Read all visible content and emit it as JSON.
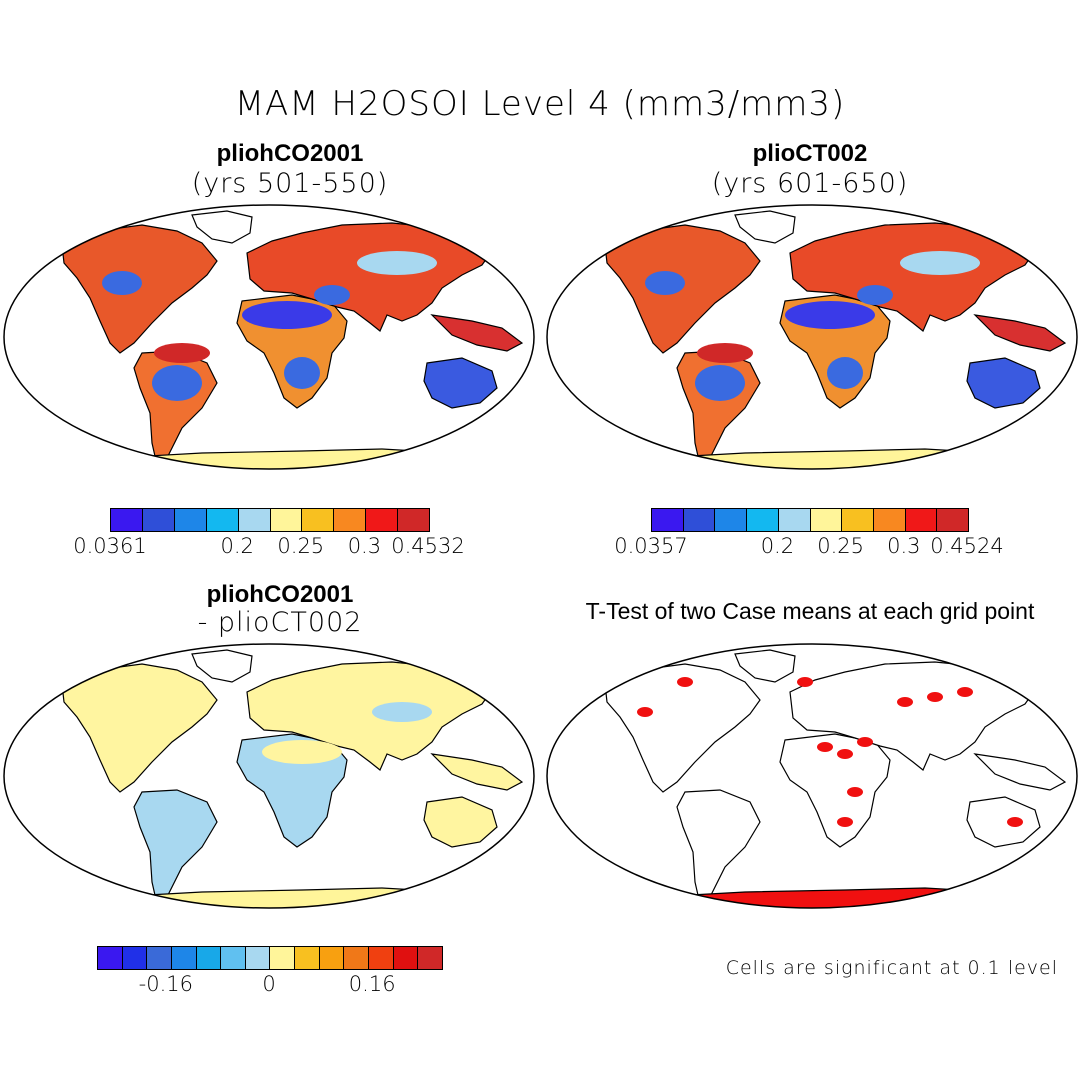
{
  "title": "MAM H2OSOI Level 4 (mm3/mm3)",
  "panels": [
    {
      "name": "pliohCO2001",
      "subtitle": "(yrs 501-550)"
    },
    {
      "name": "plioCT002",
      "subtitle": "(yrs 601-650)"
    },
    {
      "name": "pliohCO2001",
      "subtitle": "- plioCT002"
    },
    {
      "name": "T-Test of two Case means at each grid point",
      "subtitle": ""
    }
  ],
  "colorbars": [
    {
      "colors": [
        "#3a18f0",
        "#2f4fd8",
        "#1e86e8",
        "#13b8f0",
        "#a8d8f0",
        "#fff59a",
        "#f8c020",
        "#f88820",
        "#f01818",
        "#d02828"
      ],
      "labels": [
        "0.0361",
        "0.2",
        "0.25",
        "0.3",
        "0.4532"
      ]
    },
    {
      "colors": [
        "#3a18f0",
        "#2f4fd8",
        "#1e86e8",
        "#13b8f0",
        "#a8d8f0",
        "#fff59a",
        "#f8c020",
        "#f88820",
        "#f01818",
        "#d02828"
      ],
      "labels": [
        "0.0357",
        "0.2",
        "0.25",
        "0.3",
        "0.4524"
      ]
    },
    {
      "colors": [
        "#3a18f0",
        "#2030e8",
        "#3a6ad8",
        "#1e86e8",
        "#18a8e8",
        "#60c0f0",
        "#a8d8f0",
        "#fff59a",
        "#f8c020",
        "#f8a010",
        "#f07818",
        "#f04010",
        "#e01010",
        "#d02828"
      ],
      "labels": [
        "-0.16",
        "0",
        "0.16"
      ]
    }
  ],
  "significance_note": "Cells are significant at 0.1 level",
  "map_colors": {
    "land_wet": "#e53a1c",
    "land_mid": "#f0a020",
    "land_dry": "#3a3ae8",
    "diff_land": "#fff5a0",
    "diff_blue": "#a8d8f0",
    "ttest_red": "#f01010",
    "antarctica": "#fff59a"
  }
}
